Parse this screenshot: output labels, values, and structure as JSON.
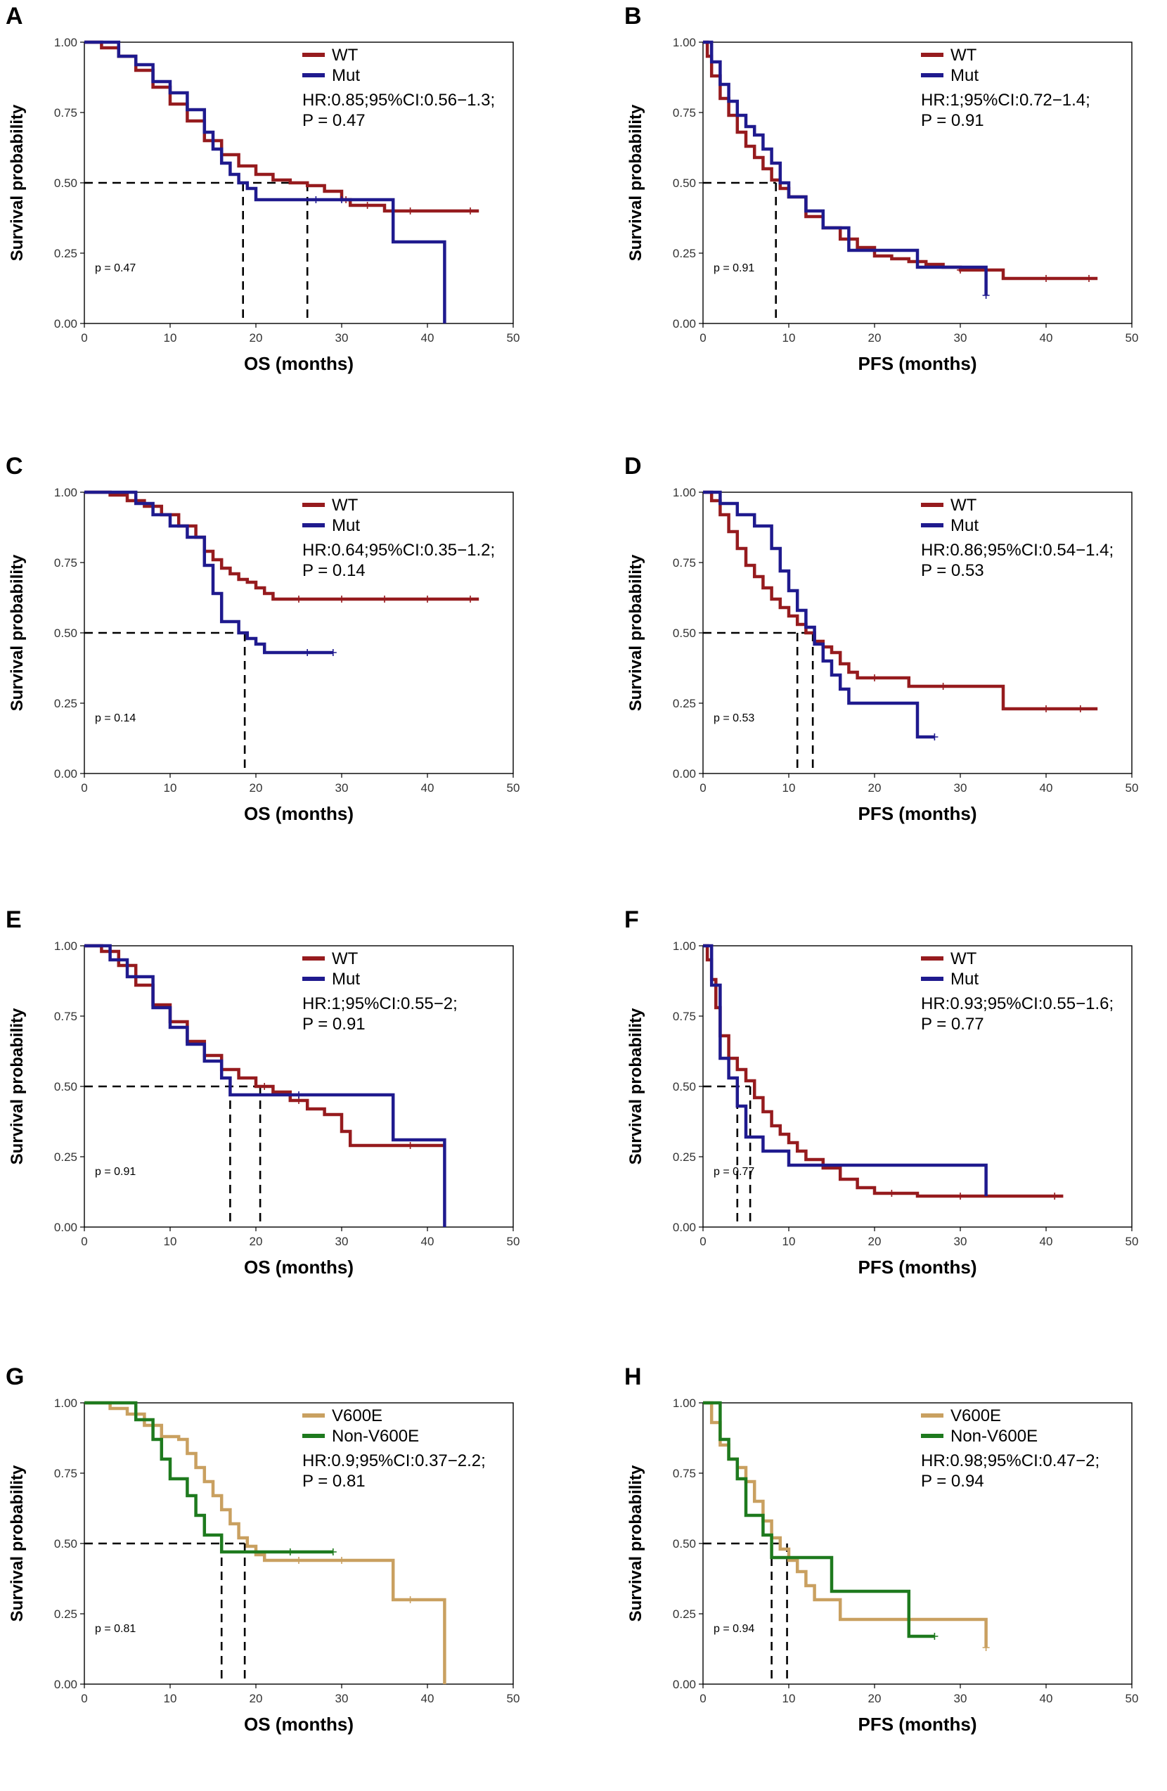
{
  "chart_data": [
    {
      "type": "line",
      "panel_label": "A",
      "xlabel": "OS (months)",
      "ylabel": "Survival probability",
      "xlim": [
        0,
        50
      ],
      "ylim": [
        0,
        1
      ],
      "xticks": [
        "0",
        "10",
        "20",
        "30",
        "40",
        "50"
      ],
      "yticks": [
        "0.00",
        "0.25",
        "0.50",
        "0.75",
        "1.00"
      ],
      "legend": [
        "WT",
        "Mut"
      ],
      "stats": [
        "HR:0.85;95%CI:0.56−1.3;",
        "P = 0.47"
      ],
      "inline_p": "p = 0.47",
      "medians": [
        18.5,
        26
      ],
      "series": [
        {
          "name": "WT",
          "color": "#961B1E",
          "x": [
            0,
            2,
            4,
            6,
            8,
            10,
            12,
            14,
            16,
            18,
            20,
            22,
            24,
            26,
            28,
            30,
            31,
            35,
            46
          ],
          "y": [
            1,
            0.98,
            0.95,
            0.9,
            0.84,
            0.78,
            0.72,
            0.65,
            0.6,
            0.56,
            0.53,
            0.51,
            0.5,
            0.49,
            0.47,
            0.44,
            0.42,
            0.4,
            0.4
          ],
          "censor": [
            30.5,
            33,
            38,
            45
          ]
        },
        {
          "name": "Mut",
          "color": "#1F1A8E",
          "x": [
            0,
            4,
            6,
            8,
            10,
            12,
            14,
            15,
            16,
            17,
            18,
            19,
            20,
            36,
            42
          ],
          "y": [
            1,
            0.95,
            0.92,
            0.86,
            0.82,
            0.76,
            0.68,
            0.62,
            0.57,
            0.53,
            0.5,
            0.48,
            0.44,
            0.29,
            0
          ],
          "censor": [
            27,
            30
          ]
        }
      ]
    },
    {
      "type": "line",
      "panel_label": "B",
      "xlabel": "PFS (months)",
      "ylabel": "Survival probability",
      "xlim": [
        0,
        50
      ],
      "ylim": [
        0,
        1
      ],
      "xticks": [
        "0",
        "10",
        "20",
        "30",
        "40",
        "50"
      ],
      "yticks": [
        "0.00",
        "0.25",
        "0.50",
        "0.75",
        "1.00"
      ],
      "legend": [
        "WT",
        "Mut"
      ],
      "stats": [
        "HR:1;95%CI:0.72−1.4;",
        "P = 0.91"
      ],
      "inline_p": "p = 0.91",
      "medians": [
        8.5
      ],
      "series": [
        {
          "name": "WT",
          "color": "#961B1E",
          "x": [
            0,
            0.5,
            1,
            2,
            3,
            4,
            5,
            6,
            7,
            8,
            9,
            10,
            12,
            14,
            16,
            18,
            20,
            22,
            24,
            26,
            28,
            30,
            35,
            46
          ],
          "y": [
            1,
            0.95,
            0.88,
            0.8,
            0.74,
            0.68,
            0.63,
            0.59,
            0.55,
            0.51,
            0.48,
            0.45,
            0.38,
            0.34,
            0.3,
            0.27,
            0.24,
            0.23,
            0.22,
            0.21,
            0.2,
            0.19,
            0.16,
            0.16
          ],
          "censor": [
            30,
            40,
            45
          ]
        },
        {
          "name": "Mut",
          "color": "#1F1A8E",
          "x": [
            0,
            1,
            2,
            3,
            4,
            5,
            6,
            7,
            8,
            9,
            10,
            12,
            14,
            17,
            25,
            33
          ],
          "y": [
            1,
            0.93,
            0.85,
            0.79,
            0.74,
            0.7,
            0.67,
            0.62,
            0.57,
            0.5,
            0.45,
            0.4,
            0.34,
            0.26,
            0.2,
            0.1
          ],
          "censor": [
            33
          ]
        }
      ]
    },
    {
      "type": "line",
      "panel_label": "C",
      "xlabel": "OS (months)",
      "ylabel": "Survival probability",
      "xlim": [
        0,
        50
      ],
      "ylim": [
        0,
        1
      ],
      "xticks": [
        "0",
        "10",
        "20",
        "30",
        "40",
        "50"
      ],
      "yticks": [
        "0.00",
        "0.25",
        "0.50",
        "0.75",
        "1.00"
      ],
      "legend": [
        "WT",
        "Mut"
      ],
      "stats": [
        "HR:0.64;95%CI:0.35−1.2;",
        "P = 0.14"
      ],
      "inline_p": "p = 0.14",
      "medians": [
        18.7
      ],
      "series": [
        {
          "name": "WT",
          "color": "#961B1E",
          "x": [
            0,
            3,
            5,
            7,
            9,
            11,
            13,
            14,
            15,
            16,
            17,
            18,
            19,
            20,
            21,
            22,
            46
          ],
          "y": [
            1,
            0.99,
            0.97,
            0.95,
            0.92,
            0.88,
            0.84,
            0.79,
            0.76,
            0.73,
            0.71,
            0.69,
            0.68,
            0.66,
            0.64,
            0.62,
            0.62
          ],
          "censor": [
            25,
            30,
            35,
            40,
            45
          ]
        },
        {
          "name": "Mut",
          "color": "#1F1A8E",
          "x": [
            0,
            6,
            8,
            10,
            12,
            14,
            15,
            16,
            18,
            19,
            20,
            21,
            29
          ],
          "y": [
            1,
            0.96,
            0.92,
            0.88,
            0.84,
            0.74,
            0.64,
            0.54,
            0.5,
            0.48,
            0.46,
            0.43,
            0.43
          ],
          "censor": [
            26,
            29
          ]
        }
      ]
    },
    {
      "type": "line",
      "panel_label": "D",
      "xlabel": "PFS (months)",
      "ylabel": "Survival probability",
      "xlim": [
        0,
        50
      ],
      "ylim": [
        0,
        1
      ],
      "xticks": [
        "0",
        "10",
        "20",
        "30",
        "40",
        "50"
      ],
      "yticks": [
        "0.00",
        "0.25",
        "0.50",
        "0.75",
        "1.00"
      ],
      "legend": [
        "WT",
        "Mut"
      ],
      "stats": [
        "HR:0.86;95%CI:0.54−1.4;",
        "P = 0.53"
      ],
      "inline_p": "p = 0.53",
      "medians": [
        11,
        12.8
      ],
      "series": [
        {
          "name": "WT",
          "color": "#961B1E",
          "x": [
            0,
            1,
            2,
            3,
            4,
            5,
            6,
            7,
            8,
            9,
            10,
            11,
            12,
            13,
            14,
            15,
            16,
            17,
            18,
            22,
            24,
            30,
            35,
            46
          ],
          "y": [
            1,
            0.97,
            0.92,
            0.86,
            0.8,
            0.74,
            0.7,
            0.66,
            0.62,
            0.59,
            0.56,
            0.53,
            0.5,
            0.47,
            0.45,
            0.43,
            0.39,
            0.36,
            0.34,
            0.34,
            0.31,
            0.31,
            0.23,
            0.23
          ],
          "censor": [
            20,
            28,
            40,
            44
          ]
        },
        {
          "name": "Mut",
          "color": "#1F1A8E",
          "x": [
            0,
            2,
            4,
            6,
            8,
            9,
            10,
            11,
            12,
            13,
            14,
            15,
            16,
            17,
            24,
            25,
            27
          ],
          "y": [
            1,
            0.96,
            0.92,
            0.88,
            0.8,
            0.72,
            0.65,
            0.58,
            0.52,
            0.46,
            0.4,
            0.35,
            0.3,
            0.25,
            0.25,
            0.13,
            0.13
          ],
          "censor": [
            27
          ]
        }
      ]
    },
    {
      "type": "line",
      "panel_label": "E",
      "xlabel": "OS (months)",
      "ylabel": "Survival probability",
      "xlim": [
        0,
        50
      ],
      "ylim": [
        0,
        1
      ],
      "xticks": [
        "0",
        "10",
        "20",
        "30",
        "40",
        "50"
      ],
      "yticks": [
        "0.00",
        "0.25",
        "0.50",
        "0.75",
        "1.00"
      ],
      "legend": [
        "WT",
        "Mut"
      ],
      "stats": [
        "HR:1;95%CI:0.55−2;",
        "P = 0.91"
      ],
      "inline_p": "p = 0.91",
      "medians": [
        17,
        20.5
      ],
      "series": [
        {
          "name": "WT",
          "color": "#961B1E",
          "x": [
            0,
            2,
            4,
            6,
            8,
            10,
            12,
            14,
            16,
            18,
            20,
            22,
            24,
            26,
            28,
            30,
            31,
            36,
            42
          ],
          "y": [
            1,
            0.98,
            0.93,
            0.86,
            0.79,
            0.73,
            0.66,
            0.61,
            0.56,
            0.53,
            0.5,
            0.48,
            0.45,
            0.42,
            0.4,
            0.34,
            0.29,
            0.29,
            0.29
          ],
          "censor": [
            21,
            25,
            38
          ]
        },
        {
          "name": "Mut",
          "color": "#1F1A8E",
          "x": [
            0,
            3,
            5,
            8,
            10,
            12,
            14,
            16,
            17,
            36,
            42
          ],
          "y": [
            1,
            0.95,
            0.89,
            0.78,
            0.71,
            0.65,
            0.59,
            0.53,
            0.47,
            0.31,
            0
          ],
          "censor": [
            25
          ]
        }
      ]
    },
    {
      "type": "line",
      "panel_label": "F",
      "xlabel": "PFS (months)",
      "ylabel": "Survival probability",
      "xlim": [
        0,
        50
      ],
      "ylim": [
        0,
        1
      ],
      "xticks": [
        "0",
        "10",
        "20",
        "30",
        "40",
        "50"
      ],
      "yticks": [
        "0.00",
        "0.25",
        "0.50",
        "0.75",
        "1.00"
      ],
      "legend": [
        "WT",
        "Mut"
      ],
      "stats": [
        "HR:0.93;95%CI:0.55−1.6;",
        "P = 0.77"
      ],
      "inline_p": "p = 0.77",
      "medians": [
        4,
        5.5
      ],
      "series": [
        {
          "name": "WT",
          "color": "#961B1E",
          "x": [
            0,
            0.5,
            1,
            1.5,
            2,
            3,
            4,
            5,
            6,
            7,
            8,
            9,
            10,
            11,
            12,
            14,
            16,
            18,
            20,
            25,
            42
          ],
          "y": [
            1,
            0.95,
            0.88,
            0.78,
            0.68,
            0.6,
            0.56,
            0.52,
            0.46,
            0.41,
            0.36,
            0.33,
            0.3,
            0.27,
            0.24,
            0.21,
            0.17,
            0.14,
            0.12,
            0.11,
            0.11
          ],
          "censor": [
            22,
            30,
            41
          ]
        },
        {
          "name": "Mut",
          "color": "#1F1A8E",
          "x": [
            0,
            1,
            2,
            3,
            4,
            5,
            7,
            10,
            33
          ],
          "y": [
            1,
            0.86,
            0.6,
            0.53,
            0.43,
            0.32,
            0.27,
            0.22,
            0.11
          ],
          "censor": []
        }
      ]
    },
    {
      "type": "line",
      "panel_label": "G",
      "xlabel": "OS (months)",
      "ylabel": "Survival probability",
      "xlim": [
        0,
        50
      ],
      "ylim": [
        0,
        1
      ],
      "xticks": [
        "0",
        "10",
        "20",
        "30",
        "40",
        "50"
      ],
      "yticks": [
        "0.00",
        "0.25",
        "0.50",
        "0.75",
        "1.00"
      ],
      "legend": [
        "V600E",
        "Non-V600E"
      ],
      "stats": [
        "HR:0.9;95%CI:0.37−2.2;",
        "P = 0.81"
      ],
      "inline_p": "p = 0.81",
      "medians": [
        16,
        18.7
      ],
      "series": [
        {
          "name": "V600E",
          "color": "#C9A060",
          "x": [
            0,
            3,
            5,
            7,
            9,
            11,
            12,
            13,
            14,
            15,
            16,
            17,
            18,
            19,
            20,
            21,
            36,
            42
          ],
          "y": [
            1,
            0.98,
            0.96,
            0.92,
            0.88,
            0.87,
            0.82,
            0.77,
            0.72,
            0.67,
            0.62,
            0.57,
            0.52,
            0.49,
            0.46,
            0.44,
            0.3,
            0
          ],
          "censor": [
            25,
            30,
            38
          ]
        },
        {
          "name": "Non-V600E",
          "color": "#1E7A1E",
          "x": [
            0,
            6,
            8,
            9,
            10,
            12,
            13,
            14,
            16,
            29
          ],
          "y": [
            1,
            0.94,
            0.87,
            0.8,
            0.73,
            0.67,
            0.6,
            0.53,
            0.47,
            0.47
          ],
          "censor": [
            24,
            29
          ]
        }
      ]
    },
    {
      "type": "line",
      "panel_label": "H",
      "xlabel": "PFS (months)",
      "ylabel": "Survival probability",
      "xlim": [
        0,
        50
      ],
      "ylim": [
        0,
        1
      ],
      "xticks": [
        "0",
        "10",
        "20",
        "30",
        "40",
        "50"
      ],
      "yticks": [
        "0.00",
        "0.25",
        "0.50",
        "0.75",
        "1.00"
      ],
      "legend": [
        "V600E",
        "Non-V600E"
      ],
      "stats": [
        "HR:0.98;95%CI:0.47−2;",
        "P = 0.94"
      ],
      "inline_p": "p = 0.94",
      "medians": [
        8,
        9.8
      ],
      "series": [
        {
          "name": "V600E",
          "color": "#C9A060",
          "x": [
            0,
            1,
            2,
            3,
            4,
            5,
            6,
            7,
            8,
            9,
            10,
            11,
            12,
            13,
            16,
            33
          ],
          "y": [
            1,
            0.93,
            0.85,
            0.8,
            0.77,
            0.72,
            0.65,
            0.58,
            0.52,
            0.48,
            0.44,
            0.4,
            0.35,
            0.3,
            0.23,
            0.13
          ],
          "censor": [
            33
          ]
        },
        {
          "name": "Non-V600E",
          "color": "#1E7A1E",
          "x": [
            0,
            2,
            3,
            4,
            5,
            7,
            8,
            10,
            15,
            24,
            27
          ],
          "y": [
            1,
            0.87,
            0.8,
            0.73,
            0.6,
            0.53,
            0.45,
            0.45,
            0.33,
            0.17,
            0.17
          ],
          "censor": [
            27
          ]
        }
      ]
    }
  ]
}
